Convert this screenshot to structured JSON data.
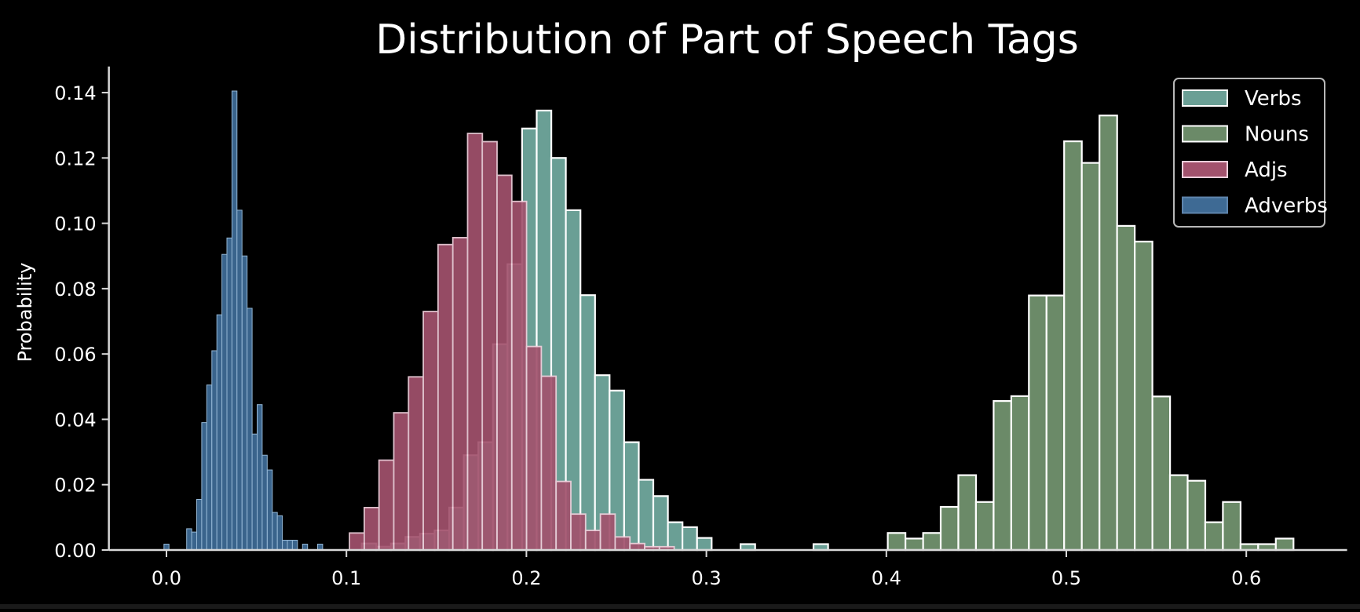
{
  "chart_data": {
    "type": "bar",
    "subtype": "overlapping-histogram",
    "title": "Distribution of Part of Speech Tags",
    "xlabel": "",
    "ylabel": "Probability",
    "xlim": [
      -0.032,
      0.656
    ],
    "ylim": [
      0,
      0.148
    ],
    "xticks": [
      0.0,
      0.1,
      0.2,
      0.3,
      0.4,
      0.5,
      0.6
    ],
    "xtick_labels": [
      "0.0",
      "0.1",
      "0.2",
      "0.3",
      "0.4",
      "0.5",
      "0.6"
    ],
    "yticks": [
      0.0,
      0.02,
      0.04,
      0.06,
      0.08,
      0.1,
      0.12,
      0.14
    ],
    "ytick_labels": [
      "0.00",
      "0.02",
      "0.04",
      "0.06",
      "0.08",
      "0.10",
      "0.12",
      "0.14"
    ],
    "grid": false,
    "legend_position": "upper right",
    "background": "#000000",
    "series": [
      {
        "name": "Verbs",
        "color": "#6a9f95",
        "edge": "#ffffff",
        "edge_width": 2.2,
        "opacity": 1,
        "bin_width": 0.0081,
        "bins": [
          [
            0.1085,
            0.002
          ],
          [
            0.1166,
            0.001
          ],
          [
            0.1247,
            0.002
          ],
          [
            0.1328,
            0.004
          ],
          [
            0.1409,
            0.005
          ],
          [
            0.149,
            0.006
          ],
          [
            0.1571,
            0.013
          ],
          [
            0.1652,
            0.029
          ],
          [
            0.1733,
            0.033
          ],
          [
            0.1814,
            0.063
          ],
          [
            0.1895,
            0.0875
          ],
          [
            0.1976,
            0.129
          ],
          [
            0.2057,
            0.1345
          ],
          [
            0.2138,
            0.12
          ],
          [
            0.2219,
            0.104
          ],
          [
            0.23,
            0.078
          ],
          [
            0.2381,
            0.0535
          ],
          [
            0.2462,
            0.0488
          ],
          [
            0.2543,
            0.033
          ],
          [
            0.2624,
            0.0215
          ],
          [
            0.2705,
            0.0165
          ],
          [
            0.2786,
            0.0085
          ],
          [
            0.2867,
            0.007
          ],
          [
            0.2948,
            0.0037
          ],
          [
            0.319,
            0.0018
          ],
          [
            0.3595,
            0.0018
          ]
        ]
      },
      {
        "name": "Nouns",
        "color": "#6b8a68",
        "edge": "#ffffff",
        "edge_width": 2.2,
        "opacity": 1,
        "bin_width": 0.0098,
        "bins": [
          [
            0.4008,
            0.0052
          ],
          [
            0.4106,
            0.0035
          ],
          [
            0.4204,
            0.0052
          ],
          [
            0.4302,
            0.0132
          ],
          [
            0.44,
            0.0229
          ],
          [
            0.4498,
            0.0147
          ],
          [
            0.4596,
            0.0456
          ],
          [
            0.4694,
            0.0471
          ],
          [
            0.4792,
            0.0779
          ],
          [
            0.489,
            0.0779
          ],
          [
            0.4988,
            0.1251
          ],
          [
            0.5086,
            0.1185
          ],
          [
            0.5184,
            0.133
          ],
          [
            0.5282,
            0.0992
          ],
          [
            0.538,
            0.0944
          ],
          [
            0.5478,
            0.047
          ],
          [
            0.5576,
            0.0229
          ],
          [
            0.5674,
            0.0212
          ],
          [
            0.5772,
            0.0085
          ],
          [
            0.587,
            0.0147
          ],
          [
            0.5968,
            0.0018
          ],
          [
            0.6066,
            0.0018
          ],
          [
            0.6164,
            0.0035
          ]
        ]
      },
      {
        "name": "Adjs",
        "color": "#a2526d",
        "edge": "#f0d0dc",
        "edge_width": 1.8,
        "opacity": 0.92,
        "bin_width": 0.0082,
        "bins": [
          [
            0.1017,
            0.0052
          ],
          [
            0.1099,
            0.013
          ],
          [
            0.1181,
            0.0275
          ],
          [
            0.1263,
            0.042
          ],
          [
            0.1345,
            0.053
          ],
          [
            0.1427,
            0.073
          ],
          [
            0.1509,
            0.0935
          ],
          [
            0.1591,
            0.0956
          ],
          [
            0.1673,
            0.1275
          ],
          [
            0.1755,
            0.125
          ],
          [
            0.1837,
            0.1147
          ],
          [
            0.1919,
            0.1067
          ],
          [
            0.2001,
            0.0623
          ],
          [
            0.2083,
            0.0532
          ],
          [
            0.2165,
            0.021
          ],
          [
            0.2247,
            0.011
          ],
          [
            0.2329,
            0.006
          ],
          [
            0.2411,
            0.011
          ],
          [
            0.2493,
            0.004
          ],
          [
            0.2575,
            0.002
          ],
          [
            0.2657,
            0.001
          ],
          [
            0.2739,
            0.001
          ]
        ]
      },
      {
        "name": "Adverbs",
        "color": "#3e6a94",
        "edge": "#9cc0e0",
        "edge_width": 1,
        "opacity": 0.95,
        "bin_width": 0.0028,
        "bins": [
          [
            -0.0014,
            0.0018
          ],
          [
            0.0112,
            0.0065
          ],
          [
            0.014,
            0.0055
          ],
          [
            0.0168,
            0.0155
          ],
          [
            0.0196,
            0.039
          ],
          [
            0.0224,
            0.0505
          ],
          [
            0.0252,
            0.061
          ],
          [
            0.028,
            0.072
          ],
          [
            0.0308,
            0.0905
          ],
          [
            0.0336,
            0.0955
          ],
          [
            0.0364,
            0.1405
          ],
          [
            0.0392,
            0.104
          ],
          [
            0.042,
            0.09
          ],
          [
            0.0448,
            0.074
          ],
          [
            0.0476,
            0.0355
          ],
          [
            0.0504,
            0.0445
          ],
          [
            0.0532,
            0.029
          ],
          [
            0.056,
            0.0245
          ],
          [
            0.0588,
            0.0115
          ],
          [
            0.0616,
            0.0105
          ],
          [
            0.0644,
            0.003
          ],
          [
            0.0672,
            0.003
          ],
          [
            0.07,
            0.003
          ],
          [
            0.0756,
            0.0018
          ],
          [
            0.084,
            0.0018
          ]
        ]
      }
    ],
    "draw_order": [
      "Verbs",
      "Nouns",
      "Adjs",
      "Adverbs"
    ]
  },
  "legend": {
    "items": [
      {
        "label": "Verbs",
        "color": "#6a9f95"
      },
      {
        "label": "Nouns",
        "color": "#6b8a68"
      },
      {
        "label": "Adjs",
        "color": "#a2526d"
      },
      {
        "label": "Adverbs",
        "color": "#3e6a94"
      }
    ]
  }
}
